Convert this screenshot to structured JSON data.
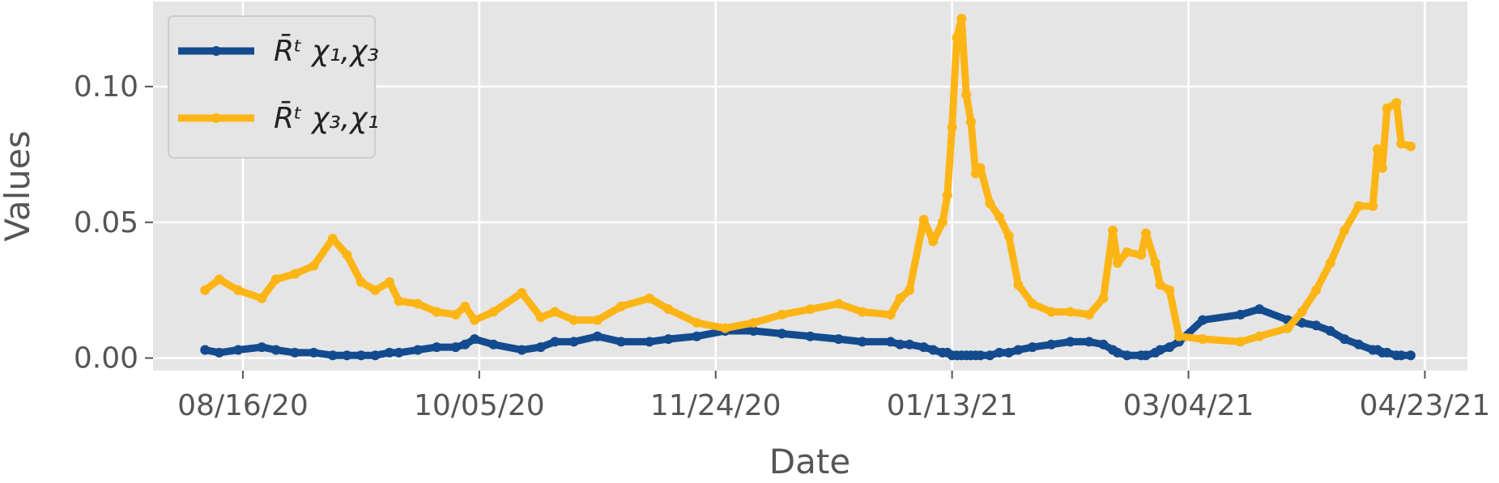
{
  "chart_data": {
    "type": "line",
    "xlabel": "Date",
    "ylabel": "Values",
    "x": [
      "2020-08-08",
      "2020-08-11",
      "2020-08-15",
      "2020-08-20",
      "2020-08-23",
      "2020-08-27",
      "2020-08-31",
      "2020-09-04",
      "2020-09-07",
      "2020-09-10",
      "2020-09-13",
      "2020-09-16",
      "2020-09-18",
      "2020-09-22",
      "2020-09-26",
      "2020-09-30",
      "2020-10-02",
      "2020-10-04",
      "2020-10-08",
      "2020-10-14",
      "2020-10-18",
      "2020-10-21",
      "2020-10-25",
      "2020-10-30",
      "2020-11-04",
      "2020-11-10",
      "2020-11-14",
      "2020-11-20",
      "2020-11-26",
      "2020-12-02",
      "2020-12-08",
      "2020-12-14",
      "2020-12-20",
      "2020-12-25",
      "2020-12-31",
      "2021-01-02",
      "2021-01-04",
      "2021-01-07",
      "2021-01-09",
      "2021-01-11",
      "2021-01-12",
      "2021-01-13",
      "2021-01-14",
      "2021-01-15",
      "2021-01-16",
      "2021-01-17",
      "2021-01-18",
      "2021-01-19",
      "2021-01-21",
      "2021-01-23",
      "2021-01-25",
      "2021-01-27",
      "2021-01-30",
      "2021-02-03",
      "2021-02-07",
      "2021-02-11",
      "2021-02-14",
      "2021-02-16",
      "2021-02-17",
      "2021-02-19",
      "2021-02-22",
      "2021-02-23",
      "2021-02-25",
      "2021-02-26",
      "2021-02-28",
      "2021-03-02",
      "2021-03-07",
      "2021-03-15",
      "2021-03-19",
      "2021-03-25",
      "2021-03-28",
      "2021-03-31",
      "2021-04-03",
      "2021-04-06",
      "2021-04-09",
      "2021-04-12",
      "2021-04-13",
      "2021-04-14",
      "2021-04-15",
      "2021-04-17",
      "2021-04-18",
      "2021-04-20"
    ],
    "series": [
      {
        "name": "R̄ᵗ χ₁,χ₃",
        "color": "#134b8e",
        "values": [
          0.003,
          0.002,
          0.003,
          0.004,
          0.003,
          0.002,
          0.002,
          0.001,
          0.001,
          0.001,
          0.001,
          0.002,
          0.002,
          0.003,
          0.004,
          0.004,
          0.005,
          0.007,
          0.005,
          0.003,
          0.004,
          0.006,
          0.006,
          0.008,
          0.006,
          0.006,
          0.007,
          0.008,
          0.01,
          0.01,
          0.009,
          0.008,
          0.007,
          0.006,
          0.006,
          0.005,
          0.005,
          0.004,
          0.003,
          0.002,
          0.002,
          0.001,
          0.001,
          0.001,
          0.001,
          0.001,
          0.001,
          0.001,
          0.001,
          0.002,
          0.002,
          0.003,
          0.004,
          0.005,
          0.006,
          0.006,
          0.005,
          0.003,
          0.002,
          0.001,
          0.001,
          0.001,
          0.002,
          0.003,
          0.004,
          0.006,
          0.014,
          0.016,
          0.018,
          0.014,
          0.013,
          0.012,
          0.01,
          0.007,
          0.005,
          0.003,
          0.003,
          0.002,
          0.002,
          0.001,
          0.001,
          0.001
        ]
      },
      {
        "name": "R̄ᵗ χ₃,χ₁",
        "color": "#fdb515",
        "values": [
          0.025,
          0.029,
          0.025,
          0.022,
          0.029,
          0.031,
          0.034,
          0.044,
          0.038,
          0.028,
          0.025,
          0.028,
          0.021,
          0.02,
          0.017,
          0.016,
          0.019,
          0.014,
          0.017,
          0.024,
          0.015,
          0.017,
          0.014,
          0.014,
          0.019,
          0.022,
          0.018,
          0.013,
          0.011,
          0.013,
          0.016,
          0.018,
          0.02,
          0.017,
          0.016,
          0.022,
          0.025,
          0.051,
          0.043,
          0.05,
          0.06,
          0.085,
          0.118,
          0.125,
          0.097,
          0.087,
          0.068,
          0.07,
          0.057,
          0.052,
          0.045,
          0.027,
          0.02,
          0.017,
          0.017,
          0.016,
          0.022,
          0.047,
          0.035,
          0.039,
          0.038,
          0.046,
          0.035,
          0.027,
          0.025,
          0.008,
          0.007,
          0.006,
          0.008,
          0.011,
          0.017,
          0.025,
          0.035,
          0.047,
          0.056,
          0.056,
          0.077,
          0.07,
          0.092,
          0.094,
          0.079,
          0.078
        ]
      }
    ],
    "xlim": [
      "2020-07-28",
      "2021-05-02"
    ],
    "xticks": [
      {
        "value": "2020-08-16",
        "label": "08/16/20"
      },
      {
        "value": "2020-10-05",
        "label": "10/05/20"
      },
      {
        "value": "2020-11-24",
        "label": "11/24/20"
      },
      {
        "value": "2021-01-13",
        "label": "01/13/21"
      },
      {
        "value": "2021-03-04",
        "label": "03/04/21"
      },
      {
        "value": "2021-04-23",
        "label": "04/23/21"
      }
    ],
    "ylim": [
      -0.0046,
      0.1313
    ],
    "yticks": [
      {
        "value": 0,
        "label": "0.00"
      },
      {
        "value": 0.05,
        "label": "0.05"
      },
      {
        "value": 0.1,
        "label": "0.10"
      }
    ],
    "grid": true,
    "legend": "upper left"
  }
}
